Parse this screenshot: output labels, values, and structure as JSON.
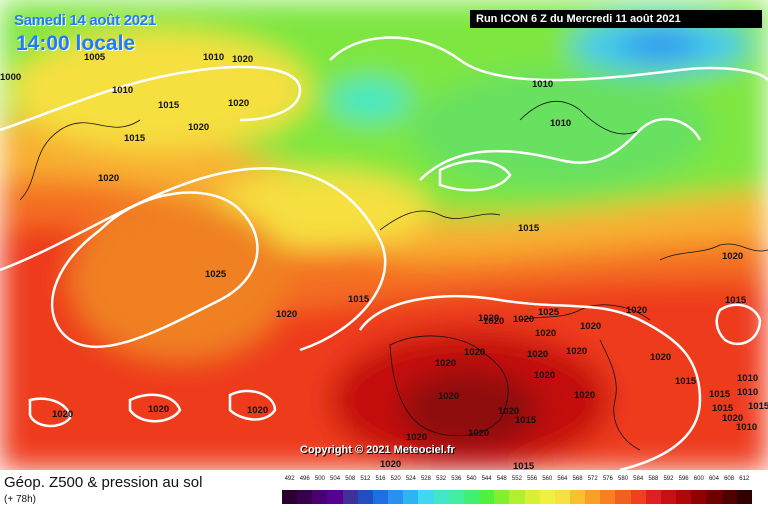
{
  "map": {
    "date": "Samedi 14 août 2021",
    "local_time": "14:00 locale",
    "run_info": "Run ICON 6 Z du Mercredi 11 août 2021",
    "copyright": "Copyright © 2021 Meteociel.fr",
    "caption": "Géop. Z500 & pression au sol",
    "forecast_step": "(+ 78h)",
    "isobar_labels": [
      "1000",
      "1005",
      "1010",
      "1020",
      "1010",
      "1015",
      "1020",
      "1020",
      "1015",
      "1010",
      "1025",
      "1020",
      "1015",
      "1010",
      "1015",
      "1020",
      "1020",
      "1015",
      "1020",
      "1020",
      "1020",
      "1020",
      "1025",
      "1020",
      "1020",
      "1020",
      "1020",
      "1020",
      "1020",
      "1020",
      "1020",
      "1020",
      "1020",
      "1020",
      "1015",
      "1010",
      "1010",
      "1015",
      "1020",
      "1015",
      "1015",
      "1015",
      "1015",
      "1020",
      "1020",
      "1020",
      "1020",
      "1020",
      "1020",
      "1010"
    ],
    "legend": {
      "values": [
        "492",
        "496",
        "500",
        "504",
        "508",
        "512",
        "516",
        "520",
        "524",
        "528",
        "532",
        "536",
        "540",
        "544",
        "548",
        "552",
        "556",
        "560",
        "564",
        "568",
        "572",
        "576",
        "580",
        "584",
        "588",
        "592",
        "596",
        "600",
        "604",
        "608",
        "612"
      ],
      "colors": [
        "#2a0030",
        "#3a0050",
        "#4a0070",
        "#5a0090",
        "#40309a",
        "#2050c0",
        "#1f6fe0",
        "#2a90f0",
        "#30b4f0",
        "#40d8f0",
        "#40e8c8",
        "#40f0a0",
        "#40f070",
        "#50f040",
        "#80f030",
        "#b0f030",
        "#d8f030",
        "#f0f040",
        "#f8e040",
        "#f8c030",
        "#f8a028",
        "#f88020",
        "#f06020",
        "#f04020",
        "#e02020",
        "#c81010",
        "#b00808",
        "#900000",
        "#700000",
        "#500000",
        "#300000"
      ]
    }
  }
}
